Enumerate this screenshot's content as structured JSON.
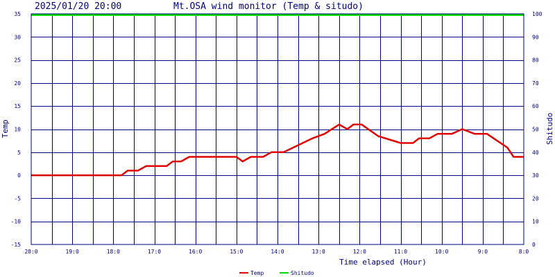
{
  "header": {
    "timestamp": "2025/01/20 20:00",
    "title": "Mt.OSA wind monitor (Temp & situdo)"
  },
  "colors": {
    "background": "#ffffff",
    "plot_background": "#ffffff",
    "grid": "#000080",
    "frame": "#000080",
    "text": "#000080",
    "temp_line": "#e00000",
    "shitudo_line": "#00e000"
  },
  "chart_data": {
    "type": "line",
    "x_tick_labels": [
      "20:0",
      "19:0",
      "18:0",
      "17:0",
      "16:0",
      "15:0",
      "14:0",
      "13:0",
      "12:0",
      "11:0",
      "10:0",
      "9:0",
      "8:0"
    ],
    "xlabel": "Time elapsed (Hour)",
    "ylabel_left": "Temp",
    "ylabel_right": "Shitudo",
    "ylim_left": [
      -15,
      35
    ],
    "yticks_left": [
      -15,
      -10,
      -5,
      0,
      5,
      10,
      15,
      20,
      25,
      30,
      35
    ],
    "ylim_right": [
      0,
      100
    ],
    "yticks_right": [
      0,
      10,
      20,
      30,
      40,
      50,
      60,
      70,
      80,
      90,
      100
    ],
    "xlim_hours_ago": [
      0,
      12
    ],
    "grid": true,
    "legend_position": "bottom-center",
    "series": [
      {
        "name": "Temp",
        "axis": "left",
        "x_hours_ago": [
          0,
          2.2,
          2.35,
          2.6,
          2.8,
          2.95,
          3.3,
          3.45,
          3.65,
          3.85,
          5.0,
          5.15,
          5.35,
          5.65,
          5.85,
          6.15,
          6.85,
          7.15,
          7.5,
          7.7,
          7.85,
          8.05,
          8.45,
          9.0,
          9.3,
          9.45,
          9.7,
          9.9,
          10.25,
          10.5,
          10.8,
          11.1,
          11.6,
          11.75,
          12.0
        ],
        "values": [
          0,
          0,
          1,
          1,
          2,
          2,
          2,
          3,
          3,
          4,
          4,
          3,
          4,
          4,
          5,
          5,
          8,
          9,
          11,
          10,
          11,
          11,
          8.5,
          7,
          7,
          8,
          8,
          9,
          9,
          10,
          9,
          9,
          6,
          4,
          4
        ]
      },
      {
        "name": "Shitudo",
        "axis": "right",
        "x_hours_ago": [
          0,
          12
        ],
        "values": [
          100,
          100
        ]
      }
    ]
  }
}
